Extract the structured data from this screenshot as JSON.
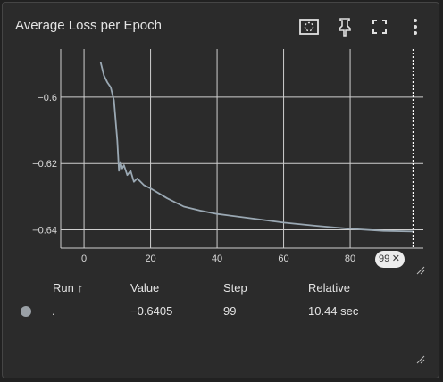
{
  "card": {
    "title": "Average Loss per Epoch"
  },
  "toolbar": {
    "icons": [
      "fit-domain-icon",
      "pin-icon",
      "fullscreen-icon",
      "more-vert-icon"
    ]
  },
  "colors": {
    "line": "#9aa8b3",
    "grid": "#cfcfcf",
    "text": "#e4e4e4",
    "background": "#2b2b2b"
  },
  "chart_data": {
    "type": "line",
    "title": "Average Loss per Epoch",
    "xlabel": "",
    "ylabel": "",
    "xlim": [
      -7,
      102
    ],
    "ylim": [
      -0.6455,
      -0.5855
    ],
    "x_ticks": [
      0,
      20,
      40,
      60,
      80
    ],
    "y_ticks": [
      -0.6,
      -0.62,
      -0.64
    ],
    "grid": true,
    "series": [
      {
        "color": "#9aa8b3",
        "x": [
          5,
          6,
          7,
          8,
          9,
          10,
          10.5,
          11,
          11.5,
          12,
          13,
          14,
          15,
          16,
          18,
          20,
          25,
          30,
          35,
          40,
          50,
          60,
          70,
          80,
          90,
          99
        ],
        "y": [
          -0.5895,
          -0.5935,
          -0.5955,
          -0.597,
          -0.601,
          -0.613,
          -0.6222,
          -0.6195,
          -0.6215,
          -0.6205,
          -0.6235,
          -0.6222,
          -0.6255,
          -0.6245,
          -0.6265,
          -0.6275,
          -0.6305,
          -0.633,
          -0.6342,
          -0.6352,
          -0.6365,
          -0.6378,
          -0.6388,
          -0.6397,
          -0.6403,
          -0.6405
        ]
      }
    ],
    "cursor": {
      "step": 99,
      "label": "99"
    }
  },
  "table": {
    "headers": {
      "run": "Run ↑",
      "value": "Value",
      "step": "Step",
      "relative": "Relative"
    },
    "rows": [
      {
        "run": ".",
        "value": "−0.6405",
        "step": "99",
        "relative": "10.44 sec",
        "color": "#9aa0a6"
      }
    ]
  }
}
